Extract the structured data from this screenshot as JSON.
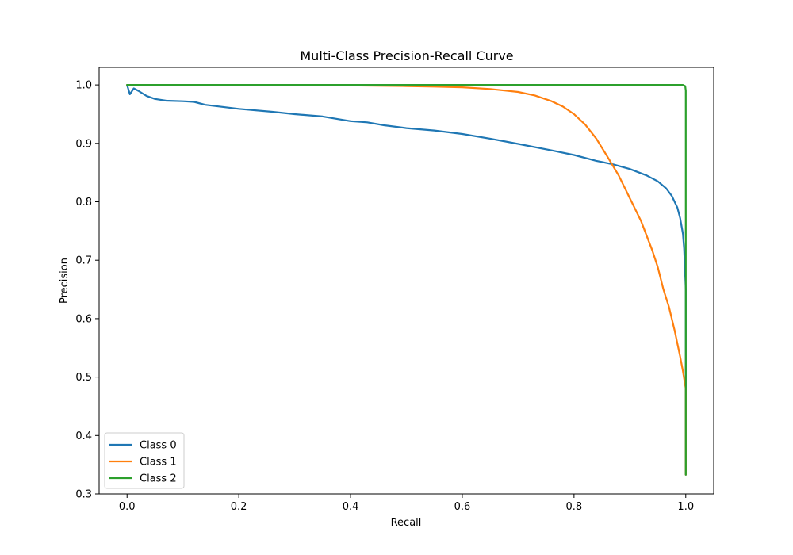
{
  "chart_data": {
    "type": "line",
    "title": "Multi-Class Precision-Recall Curve",
    "xlabel": "Recall",
    "ylabel": "Precision",
    "xlim": [
      -0.05,
      1.05
    ],
    "ylim": [
      0.3,
      1.03
    ],
    "x_ticks": [
      0.0,
      0.2,
      0.4,
      0.6,
      0.8,
      1.0
    ],
    "x_tick_labels": [
      "0.0",
      "0.2",
      "0.4",
      "0.6",
      "0.8",
      "1.0"
    ],
    "y_ticks": [
      0.3,
      0.4,
      0.5,
      0.6,
      0.7,
      0.8,
      0.9,
      1.0
    ],
    "y_tick_labels": [
      "0.3",
      "0.4",
      "0.5",
      "0.6",
      "0.7",
      "0.8",
      "0.9",
      "1.0"
    ],
    "grid": false,
    "legend_position": "lower-left",
    "series": [
      {
        "name": "Class 0",
        "color": "#1f77b4",
        "x": [
          0.0,
          0.005,
          0.012,
          0.02,
          0.035,
          0.05,
          0.07,
          0.1,
          0.12,
          0.14,
          0.2,
          0.26,
          0.3,
          0.35,
          0.4,
          0.43,
          0.46,
          0.5,
          0.55,
          0.6,
          0.65,
          0.7,
          0.76,
          0.8,
          0.84,
          0.87,
          0.9,
          0.93,
          0.95,
          0.965,
          0.975,
          0.985,
          0.99,
          0.995,
          0.997,
          1.0,
          1.0
        ],
        "y": [
          1.0,
          0.984,
          0.994,
          0.99,
          0.981,
          0.976,
          0.973,
          0.972,
          0.971,
          0.966,
          0.959,
          0.954,
          0.95,
          0.946,
          0.938,
          0.936,
          0.931,
          0.926,
          0.922,
          0.916,
          0.908,
          0.899,
          0.888,
          0.88,
          0.87,
          0.864,
          0.856,
          0.845,
          0.835,
          0.823,
          0.81,
          0.79,
          0.772,
          0.745,
          0.72,
          0.65,
          0.333
        ]
      },
      {
        "name": "Class 1",
        "color": "#ff7f0e",
        "x": [
          0.0,
          0.1,
          0.2,
          0.3,
          0.4,
          0.5,
          0.55,
          0.6,
          0.65,
          0.7,
          0.73,
          0.76,
          0.78,
          0.8,
          0.82,
          0.84,
          0.86,
          0.88,
          0.9,
          0.92,
          0.94,
          0.95,
          0.96,
          0.97,
          0.98,
          0.99,
          0.995,
          1.0,
          1.0
        ],
        "y": [
          1.0,
          1.0,
          1.0,
          1.0,
          0.999,
          0.998,
          0.997,
          0.996,
          0.993,
          0.988,
          0.982,
          0.972,
          0.963,
          0.95,
          0.932,
          0.908,
          0.877,
          0.845,
          0.806,
          0.767,
          0.717,
          0.688,
          0.65,
          0.62,
          0.58,
          0.535,
          0.51,
          0.48,
          0.333
        ]
      },
      {
        "name": "Class 2",
        "color": "#2ca02c",
        "x": [
          0.0,
          0.2,
          0.4,
          0.6,
          0.8,
          0.995,
          0.999,
          1.0,
          1.0
        ],
        "y": [
          1.0,
          1.0,
          1.0,
          1.0,
          1.0,
          1.0,
          0.998,
          0.99,
          0.333
        ]
      }
    ]
  }
}
